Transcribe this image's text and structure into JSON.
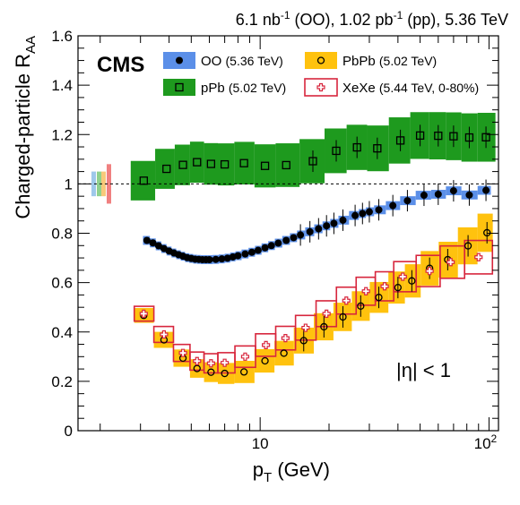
{
  "chart_data": {
    "type": "scatter",
    "experiment_label": "CMS",
    "luminosity_label": {
      "prefix": "6.1 nb",
      "sup1": "-1",
      "middle": " (OO), 1.02 pb",
      "sup2": "-1",
      "suffix": " (pp), 5.36 TeV"
    },
    "xlabel": {
      "main": "p",
      "sub": "T",
      "unit": " (GeV)"
    },
    "ylabel": {
      "main": "Charged-particle R",
      "sub": "AA"
    },
    "x_scale": "log",
    "xlim": [
      1.6,
      110
    ],
    "ylim": [
      0,
      1.6
    ],
    "y_ticks": [
      "0",
      "0.2",
      "0.4",
      "0.6",
      "0.8",
      "1",
      "1.2",
      "1.4",
      "1.6"
    ],
    "x_tick_labels": {
      "ten": "10",
      "hundred_base": "10",
      "hundred_exp": "2"
    },
    "reference_line": 1,
    "annotation": "|η| < 1",
    "colors": {
      "OO_band": "#5b8fe8",
      "pPb_band": "#1e9a1e",
      "PbPb_band": "#ffc20e",
      "XeXe_box": "#d7263d",
      "norm_box_colors": [
        "#9ec8ea",
        "#8fd18f",
        "#f7c97a",
        "#f08080"
      ]
    },
    "series": [
      {
        "name": "OO",
        "legend_detail": "(5.36 TeV)",
        "marker": "filled-circle",
        "points": [
          [
            3.2,
            0.771
          ],
          [
            3.4,
            0.761
          ],
          [
            3.6,
            0.749
          ],
          [
            3.8,
            0.738
          ],
          [
            4.0,
            0.728
          ],
          [
            4.2,
            0.72
          ],
          [
            4.4,
            0.713
          ],
          [
            4.6,
            0.707
          ],
          [
            4.8,
            0.701
          ],
          [
            5.0,
            0.698
          ],
          [
            5.2,
            0.695
          ],
          [
            5.4,
            0.694
          ],
          [
            5.6,
            0.693
          ],
          [
            5.8,
            0.693
          ],
          [
            6.0,
            0.693
          ],
          [
            6.4,
            0.694
          ],
          [
            6.8,
            0.696
          ],
          [
            7.2,
            0.699
          ],
          [
            7.6,
            0.704
          ],
          [
            8.0,
            0.709
          ],
          [
            8.6,
            0.716
          ],
          [
            9.2,
            0.723
          ],
          [
            9.8,
            0.731
          ],
          [
            10.5,
            0.741
          ],
          [
            11.2,
            0.75
          ],
          [
            12.0,
            0.76
          ],
          [
            13.0,
            0.771
          ],
          [
            14.0,
            0.782
          ],
          [
            15.0,
            0.793
          ],
          [
            16.5,
            0.806
          ],
          [
            18.0,
            0.818
          ],
          [
            19.5,
            0.83
          ],
          [
            21.0,
            0.84
          ],
          [
            23.0,
            0.853
          ],
          [
            26.0,
            0.872
          ],
          [
            28.0,
            0.88
          ],
          [
            30.0,
            0.887
          ],
          [
            33.0,
            0.895
          ],
          [
            38.0,
            0.912
          ],
          [
            44.0,
            0.932
          ],
          [
            52.0,
            0.954
          ],
          [
            60.0,
            0.958
          ],
          [
            70.0,
            0.972
          ],
          [
            82.0,
            0.955
          ],
          [
            97.0,
            0.974
          ]
        ]
      },
      {
        "name": "pPb",
        "legend_detail": "(5.02 TeV)",
        "marker": "open-square",
        "points": [
          [
            3.1,
            1.013
          ],
          [
            3.9,
            1.061
          ],
          [
            4.6,
            1.077
          ],
          [
            5.3,
            1.088
          ],
          [
            6.1,
            1.081
          ],
          [
            7.0,
            1.079
          ],
          [
            8.5,
            1.084
          ],
          [
            10.5,
            1.073
          ],
          [
            13.0,
            1.076
          ],
          [
            17.0,
            1.092
          ],
          [
            21.5,
            1.134
          ],
          [
            26.5,
            1.148
          ],
          [
            32.5,
            1.144
          ],
          [
            41.0,
            1.176
          ],
          [
            50.0,
            1.196
          ],
          [
            60.0,
            1.195
          ],
          [
            70.0,
            1.193
          ],
          [
            82.0,
            1.188
          ],
          [
            97.0,
            1.189
          ]
        ]
      },
      {
        "name": "PbPb",
        "legend_detail": "(5.02 TeV)",
        "marker": "open-circle",
        "points": [
          [
            3.1,
            0.467
          ],
          [
            3.8,
            0.368
          ],
          [
            4.6,
            0.294
          ],
          [
            5.3,
            0.252
          ],
          [
            6.1,
            0.237
          ],
          [
            7.0,
            0.232
          ],
          [
            8.5,
            0.238
          ],
          [
            10.5,
            0.283
          ],
          [
            12.7,
            0.314
          ],
          [
            15.5,
            0.365
          ],
          [
            19.0,
            0.421
          ],
          [
            23.0,
            0.461
          ],
          [
            27.5,
            0.505
          ],
          [
            33.0,
            0.54
          ],
          [
            40.0,
            0.58
          ],
          [
            46.0,
            0.607
          ],
          [
            55.0,
            0.658
          ],
          [
            66.0,
            0.693
          ],
          [
            81.0,
            0.749
          ],
          [
            98.0,
            0.802
          ]
        ]
      },
      {
        "name": "XeXe",
        "legend_detail": "(5.44 TeV, 0-80%)",
        "marker": "open-cross",
        "points": [
          [
            3.1,
            0.474
          ],
          [
            3.8,
            0.39
          ],
          [
            4.6,
            0.315
          ],
          [
            5.3,
            0.282
          ],
          [
            6.1,
            0.273
          ],
          [
            7.0,
            0.275
          ],
          [
            8.6,
            0.3
          ],
          [
            10.6,
            0.347
          ],
          [
            12.9,
            0.375
          ],
          [
            15.8,
            0.417
          ],
          [
            19.5,
            0.474
          ],
          [
            23.8,
            0.527
          ],
          [
            29.0,
            0.565
          ],
          [
            35.0,
            0.585
          ],
          [
            42.0,
            0.624
          ],
          [
            55.0,
            0.647
          ],
          [
            68.0,
            0.683
          ],
          [
            90.0,
            0.703
          ]
        ]
      }
    ],
    "legend": {
      "entries": [
        {
          "series": "OO",
          "label": "OO",
          "detail": "(5.36 TeV)"
        },
        {
          "series": "PbPb",
          "label": "PbPb",
          "detail": "(5.02 TeV)"
        },
        {
          "series": "pPb",
          "label": "pPb",
          "detail": "(5.02 TeV)"
        },
        {
          "series": "XeXe",
          "label": "XeXe",
          "detail": "(5.44 TeV, 0-80%)"
        }
      ],
      "placement": "top"
    }
  }
}
